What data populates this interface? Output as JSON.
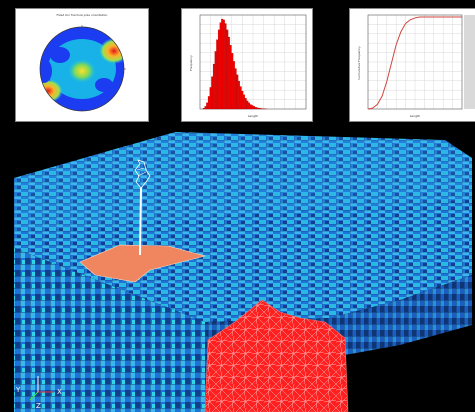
{
  "window": {
    "background": "#000000"
  },
  "stereonet": {
    "title": "Fixed bin fracture pole orientation",
    "colors": {
      "low": "#1b3cf0",
      "mid": "#18c6e6",
      "high": "#ffe02a",
      "peak": "#e2181b"
    }
  },
  "histogram": {
    "ylabel": "Frequency",
    "xlabel": "Length",
    "bar_color": "#ee0000"
  },
  "cdf": {
    "xlabel": "Length",
    "ylabel": "Cumulative Frequency",
    "curve_color": "#d0453d"
  },
  "chart_data": [
    {
      "type": "bar",
      "values": [
        1,
        3,
        7,
        14,
        24,
        36,
        50,
        64,
        77,
        88,
        96,
        100,
        99,
        95,
        88,
        80,
        71,
        62,
        53,
        45,
        38,
        31,
        25,
        20,
        16,
        12,
        9,
        7,
        5,
        4,
        3,
        2,
        1.5,
        1,
        0.7,
        0.5,
        0.3,
        0.2
      ],
      "xlabel": "Length",
      "ylabel": "Frequency"
    },
    {
      "type": "line",
      "x": [
        0,
        0.05,
        0.1,
        0.15,
        0.2,
        0.25,
        0.3,
        0.35,
        0.4,
        0.45,
        0.5,
        0.55,
        0.6,
        0.65,
        0.7,
        0.75,
        0.8,
        0.85,
        0.9,
        0.95,
        1
      ],
      "y": [
        0,
        0.01,
        0.05,
        0.14,
        0.3,
        0.5,
        0.7,
        0.84,
        0.93,
        0.97,
        0.99,
        1,
        1,
        1,
        1,
        1,
        1,
        1,
        1,
        1,
        1
      ],
      "xlabel": "Length",
      "ylabel": "Cumulative Frequency"
    }
  ],
  "model": {
    "colors": {
      "grid_dark": "#123e8c",
      "grid_mid": "#1e73d8",
      "grid_light": "#3bb6ee",
      "grid_cyan": "#2fd6ea",
      "fracture_plane": "#f0865f",
      "fracture_cluster": "#ff1f1f",
      "wellbore": "#ffffff"
    }
  },
  "axes": {
    "y_label": "Y",
    "x_label": "X",
    "z_label": "Z"
  }
}
